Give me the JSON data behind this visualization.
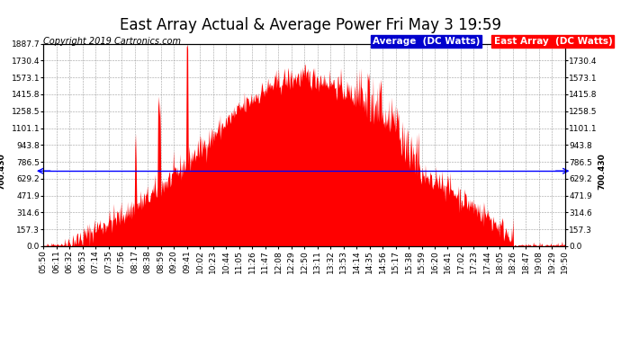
{
  "title": "East Array Actual & Average Power Fri May 3 19:59",
  "copyright": "Copyright 2019 Cartronics.com",
  "avg_label": "700.430",
  "average_value": 700.43,
  "ymax": 1887.7,
  "yticks": [
    0.0,
    157.3,
    314.6,
    471.9,
    629.2,
    786.5,
    943.8,
    1101.1,
    1258.5,
    1415.8,
    1573.1,
    1730.4,
    1887.7
  ],
  "background_color": "#ffffff",
  "plot_bg_color": "#ffffff",
  "grid_color": "#888888",
  "fill_color": "#ff0000",
  "average_line_color": "#0000ff",
  "legend_avg_bg": "#0000cd",
  "legend_east_bg": "#ff0000",
  "title_fontsize": 12,
  "copyright_fontsize": 7,
  "tick_fontsize": 6.5,
  "legend_fontsize": 7.5,
  "tick_labels": [
    "05:50",
    "06:11",
    "06:32",
    "06:53",
    "07:14",
    "07:35",
    "07:56",
    "08:17",
    "08:38",
    "08:59",
    "09:20",
    "09:41",
    "10:02",
    "10:23",
    "10:44",
    "11:05",
    "11:26",
    "11:47",
    "12:08",
    "12:29",
    "12:50",
    "13:11",
    "13:32",
    "13:53",
    "14:14",
    "14:35",
    "14:56",
    "15:17",
    "15:38",
    "15:59",
    "16:20",
    "16:41",
    "17:02",
    "17:23",
    "17:44",
    "18:05",
    "18:26",
    "18:47",
    "19:08",
    "19:29",
    "19:50"
  ]
}
